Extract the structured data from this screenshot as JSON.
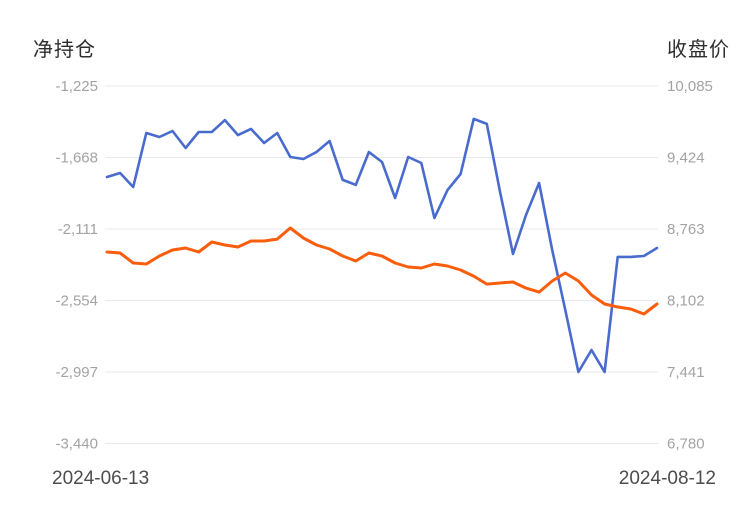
{
  "header": {
    "left_axis_title": "净持仓",
    "right_axis_title": "收盘价"
  },
  "x_axis": {
    "start_label": "2024-06-13",
    "end_label": "2024-08-12"
  },
  "colors": {
    "background": "#ffffff",
    "grid_line": "#e6eaee",
    "tick_text": "#a3a3a3",
    "axis_title_text": "#2e2e2e",
    "date_text": "#4d4d4d",
    "net_position_line": "#4a6bce",
    "close_price_line": "#fa5e0d"
  },
  "chart_data": {
    "type": "line",
    "title": "",
    "legend": "none",
    "grid": "horizontal-only",
    "point_count": 43,
    "x_visible_labels": [
      "2024-06-13",
      "2024-08-12"
    ],
    "left_axis": {
      "title": "净持仓",
      "ticks": [
        "-1,225",
        "-1,668",
        "-2,111",
        "-2,554",
        "-2,997",
        "-3,440"
      ],
      "max": -1225,
      "min": -3440
    },
    "right_axis": {
      "title": "收盘价",
      "ticks": [
        "10,085",
        "9,424",
        "8,763",
        "8,102",
        "7,441",
        "6,780"
      ],
      "max": 10085,
      "min": 6780
    },
    "series": [
      {
        "name": "净持仓",
        "axis": "left",
        "color": "#4a6bce",
        "values": [
          -1789,
          -1764,
          -1851,
          -1516,
          -1541,
          -1504,
          -1609,
          -1510,
          -1510,
          -1436,
          -1529,
          -1491,
          -1578,
          -1516,
          -1665,
          -1677,
          -1634,
          -1566,
          -1807,
          -1838,
          -1634,
          -1696,
          -1919,
          -1665,
          -1702,
          -2043,
          -1870,
          -1770,
          -1429,
          -1460,
          -1876,
          -2266,
          -2024,
          -1826,
          -2241,
          -2613,
          -2997,
          -2861,
          -2997,
          -2284,
          -2284,
          -2278,
          -2229
        ]
      },
      {
        "name": "收盘价",
        "axis": "right",
        "color": "#fa5e0d",
        "values": [
          8550,
          8541,
          8449,
          8439,
          8513,
          8569,
          8587,
          8550,
          8643,
          8615,
          8597,
          8652,
          8652,
          8670,
          8772,
          8680,
          8615,
          8578,
          8513,
          8467,
          8541,
          8513,
          8449,
          8412,
          8402,
          8439,
          8421,
          8384,
          8328,
          8254,
          8264,
          8273,
          8217,
          8180,
          8282,
          8356,
          8282,
          8153,
          8070,
          8042,
          8023,
          7977,
          8070
        ]
      }
    ]
  }
}
